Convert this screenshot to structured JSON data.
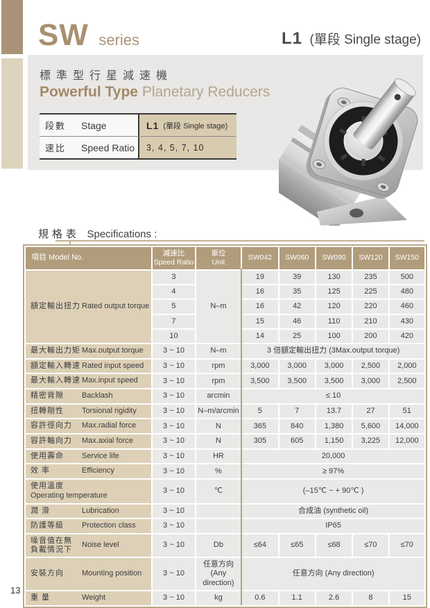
{
  "page_number": "13",
  "masthead": {
    "series_name": "SW",
    "series_word": "series",
    "stage_code": "L1",
    "stage_desc": "(單段 Single stage)"
  },
  "intro": {
    "title_zh": "標準型行星減速機",
    "title_en_bold": "Powerful Type",
    "title_en_light": "Planetary Reducers",
    "stage_row": {
      "zh": "段數",
      "en": "Stage",
      "value_bold": "L1",
      "value_rest": "(單段 Single stage)"
    },
    "ratio_row": {
      "zh": "速比",
      "en": "Speed Ratio",
      "value": "3, 4, 5, 7, 10"
    }
  },
  "spec": {
    "heading_zh": "規格表",
    "heading_en": "Specifications :",
    "header": {
      "model_col": "項目 Model No.",
      "ratio_zh": "減速比",
      "ratio_en": "Speed Ratio",
      "unit_zh": "單位",
      "unit_en": "Unit",
      "models": [
        "SW042",
        "SW060",
        "SW090",
        "SW120",
        "SW150"
      ]
    },
    "rows": [
      {
        "zh": "額定輸出扭力",
        "en": "Rated output torque",
        "rowspan": 5,
        "ratio": "3",
        "unit": "N–m",
        "unit_rowspan": 5,
        "values": [
          "19",
          "39",
          "130",
          "235",
          "500"
        ]
      },
      {
        "ratio": "4",
        "values": [
          "16",
          "35",
          "125",
          "225",
          "480"
        ]
      },
      {
        "ratio": "5",
        "values": [
          "16",
          "42",
          "120",
          "220",
          "460"
        ]
      },
      {
        "ratio": "7",
        "values": [
          "15",
          "46",
          "110",
          "210",
          "430"
        ]
      },
      {
        "ratio": "10",
        "values": [
          "14",
          "25",
          "100",
          "200",
          "420"
        ]
      },
      {
        "zh": "最大輸出力矩",
        "en": "Max.output torque",
        "ratio": "3 ~ 10",
        "unit": "N–m",
        "span": "3 倍額定輸出扭力 (3Max.output torque)"
      },
      {
        "zh": "額定輸入轉速",
        "en": "Rated input speed",
        "ratio": "3 ~ 10",
        "unit": "rpm",
        "values": [
          "3,000",
          "3,000",
          "3,000",
          "2,500",
          "2,000"
        ]
      },
      {
        "zh": "最大輸入轉速",
        "en": "Max.input speed",
        "ratio": "3 ~ 10",
        "unit": "rpm",
        "values": [
          "3,500",
          "3,500",
          "3,500",
          "3,000",
          "2,500"
        ]
      },
      {
        "zh": "精密背隙",
        "en": "Backlash",
        "ratio": "3 ~ 10",
        "unit": "arcmin",
        "span": "≤ 10"
      },
      {
        "zh": "扭轉剛性",
        "en": "Torsional rigidity",
        "ratio": "3 ~ 10",
        "unit": "N–m/arcmin",
        "values": [
          "5",
          "7",
          "13.7",
          "27",
          "51"
        ]
      },
      {
        "zh": "容許徑向力",
        "en": "Max.radial force",
        "ratio": "3 ~ 10",
        "unit": "N",
        "values": [
          "365",
          "840",
          "1,380",
          "5,600",
          "14,000"
        ]
      },
      {
        "zh": "容許軸向力",
        "en": "Max.axial force",
        "ratio": "3 ~ 10",
        "unit": "N",
        "values": [
          "305",
          "605",
          "1,150",
          "3,225",
          "12,000"
        ]
      },
      {
        "zh": "使用壽命",
        "en": "Service life",
        "ratio": "3 ~ 10",
        "unit": "HR",
        "span": "20,000"
      },
      {
        "zh": "效 率",
        "en": "Efficiency",
        "ratio": "3 ~ 10",
        "unit": "%",
        "span": "≥ 97%"
      },
      {
        "zh": "使用溫度",
        "en": "Operating temperature",
        "ratio": "3 ~ 10",
        "unit": "℃",
        "span": "(–15℃ ~ + 90℃ )"
      },
      {
        "zh": "潤 滑",
        "en": "Lubrication",
        "ratio": "3 ~ 10",
        "unit": "",
        "span": "合成油 (synthetic oil)"
      },
      {
        "zh": "防護等級",
        "en": "Protection class",
        "ratio": "3 ~ 10",
        "unit": "",
        "span": "IP65"
      },
      {
        "zh": "噪音值在無\n負載情況下",
        "en": "Noise level",
        "ratio": "3 ~ 10",
        "unit": "Db",
        "values": [
          "≤64",
          "≤65",
          "≤68",
          "≤70",
          "≤70"
        ]
      },
      {
        "zh": "安裝方向",
        "en": "Mounting position",
        "ratio": "3 ~ 10",
        "unit": "任意方向\n(Any direction)",
        "span": "任意方向 (Any direction)"
      },
      {
        "zh": "重 量",
        "en": "Weight",
        "ratio": "3 ~ 10",
        "unit": "kg",
        "values": [
          "0.6",
          "1.1",
          "2.6",
          "8",
          "15"
        ]
      }
    ]
  },
  "colors": {
    "accent_tan": "#a89070",
    "header_bg": "#b19d7c",
    "label_bg": "#ddd0b6",
    "cell_bg": "#e9e9e7",
    "divider": "#b2a184"
  }
}
